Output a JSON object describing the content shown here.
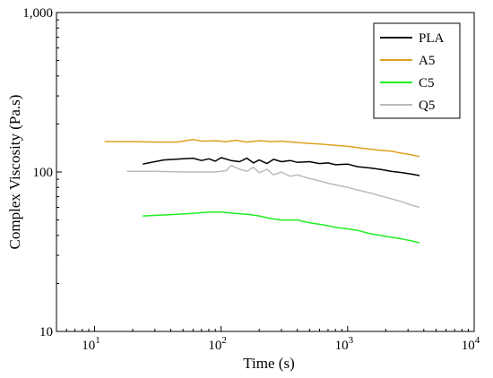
{
  "chart_data": {
    "type": "line",
    "title": "",
    "xlabel": "Time (s)",
    "ylabel": "Complex Viscosity (Pa.s)",
    "x_scale": "log",
    "y_scale": "log",
    "xlim": [
      5,
      10000
    ],
    "ylim": [
      10,
      1000
    ],
    "x_ticks": [
      {
        "value": 10,
        "base": "10",
        "exp": "1"
      },
      {
        "value": 100,
        "base": "10",
        "exp": "2"
      },
      {
        "value": 1000,
        "base": "10",
        "exp": "3"
      },
      {
        "value": 10000,
        "base": "10",
        "exp": "4"
      }
    ],
    "y_ticks": [
      {
        "value": 10,
        "label": "10"
      },
      {
        "value": 100,
        "label": "100"
      },
      {
        "value": 1000,
        "label": "1,000"
      }
    ],
    "grid": false,
    "legend_position": "top-right",
    "series": [
      {
        "name": "PLA",
        "color": "#000000",
        "x": [
          24,
          35,
          50,
          60,
          70,
          80,
          90,
          100,
          120,
          140,
          160,
          180,
          200,
          230,
          260,
          300,
          350,
          400,
          500,
          600,
          700,
          800,
          1000,
          1200,
          1500,
          1800,
          2200,
          2700,
          3200,
          3700
        ],
        "y": [
          112,
          119,
          121,
          122,
          118,
          121,
          117,
          123,
          118,
          116,
          122,
          114,
          119,
          113,
          120,
          116,
          118,
          115,
          116,
          113,
          114,
          111,
          112,
          108,
          106,
          104,
          101,
          99,
          97,
          95
        ]
      },
      {
        "name": "A5",
        "color": "#E0A020",
        "x": [
          12,
          20,
          30,
          45,
          60,
          70,
          90,
          110,
          130,
          160,
          200,
          250,
          300,
          400,
          500,
          600,
          800,
          1000,
          1200,
          1500,
          1800,
          2200,
          2700,
          3200,
          3700
        ],
        "y": [
          155,
          155,
          154,
          154,
          160,
          156,
          157,
          155,
          158,
          154,
          157,
          155,
          156,
          153,
          151,
          150,
          147,
          145,
          142,
          139,
          137,
          135,
          131,
          128,
          125
        ]
      },
      {
        "name": "C5",
        "color": "#22EE22",
        "x": [
          24,
          40,
          60,
          80,
          100,
          130,
          170,
          200,
          250,
          300,
          400,
          500,
          600,
          700,
          800,
          1000,
          1200,
          1500,
          1800,
          2200,
          2700,
          3200,
          3700
        ],
        "y": [
          53,
          54,
          55,
          56,
          56,
          55,
          54,
          53,
          51,
          50,
          50,
          48,
          47,
          46,
          45,
          44,
          43,
          41,
          40,
          39,
          38,
          37,
          36
        ]
      },
      {
        "name": "Q5",
        "color": "#BBBBBB",
        "x": [
          18,
          30,
          50,
          70,
          90,
          110,
          120,
          140,
          160,
          180,
          200,
          230,
          260,
          300,
          350,
          400,
          500,
          600,
          700,
          800,
          1000,
          1200,
          1500,
          1800,
          2200,
          2700,
          3200,
          3700
        ],
        "y": [
          101,
          101,
          100,
          100,
          100,
          102,
          110,
          104,
          101,
          107,
          99,
          104,
          96,
          100,
          94,
          96,
          91,
          88,
          85,
          83,
          80,
          77,
          74,
          71,
          68,
          65,
          62,
          60
        ]
      }
    ]
  }
}
